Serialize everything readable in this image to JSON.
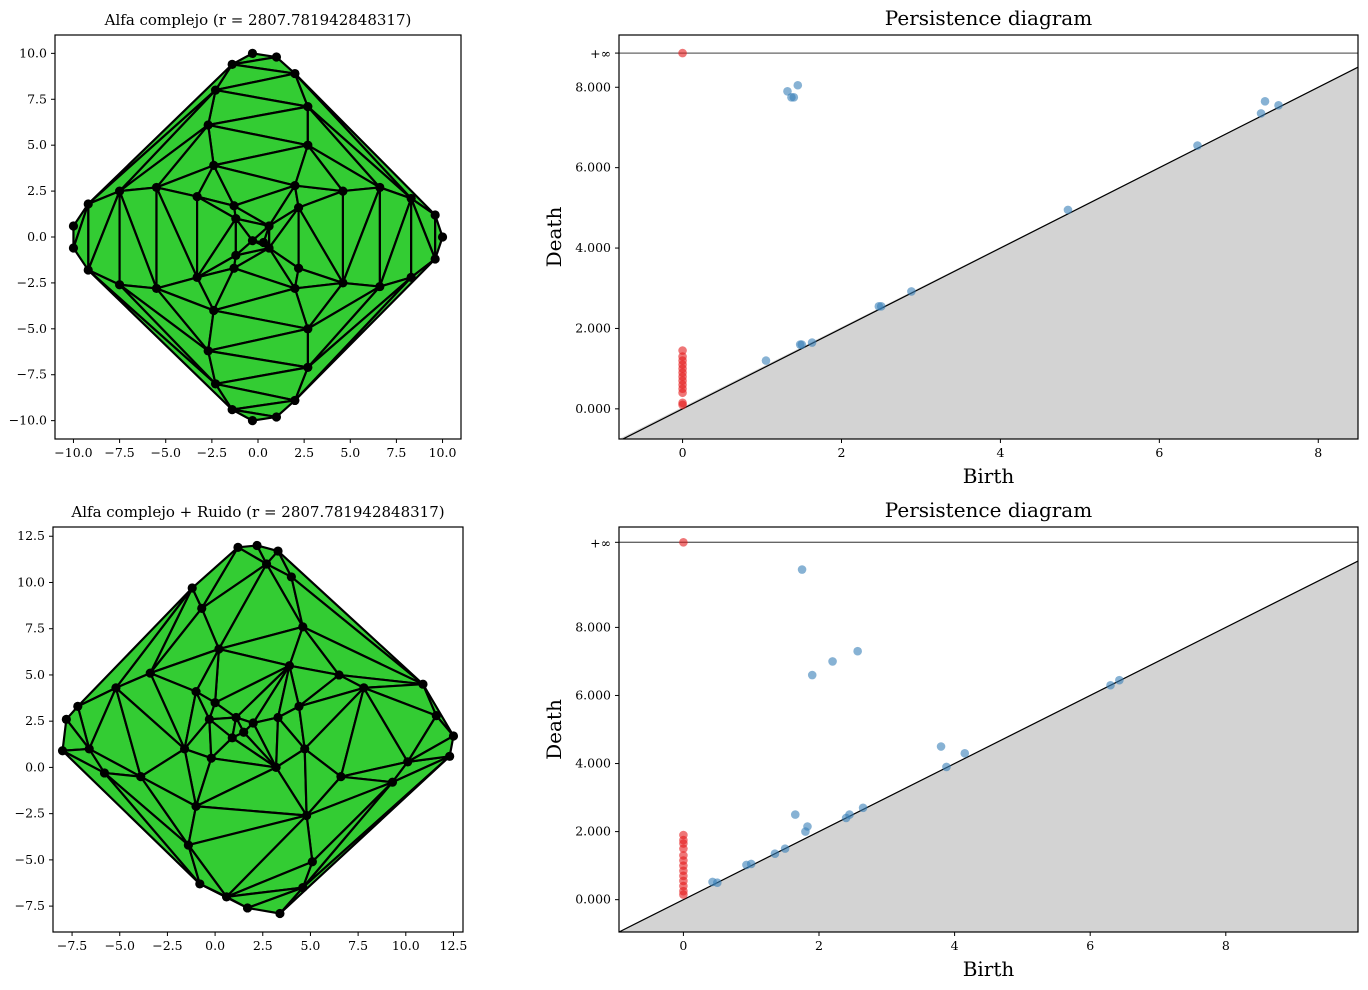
{
  "chart_data": [
    {
      "type": "triangulation",
      "title": "Alfa complejo (r = 2807.781942848317)",
      "xlim": [
        -11,
        11
      ],
      "ylim": [
        -11,
        11
      ],
      "xticks": [
        -10,
        -7.5,
        -5,
        -2.5,
        0,
        2.5,
        5,
        7.5,
        10
      ],
      "xtick_labels": [
        "−10.0",
        "−7.5",
        "−5.0",
        "−2.5",
        "0.0",
        "2.5",
        "5.0",
        "7.5",
        "10.0"
      ],
      "yticks": [
        10,
        7.5,
        5,
        2.5,
        0,
        -2.5,
        -5,
        -7.5,
        -10
      ],
      "ytick_labels": [
        "10.0",
        "7.5",
        "5.0",
        "2.5",
        "0.0",
        "−2.5",
        "−5.0",
        "−7.5",
        "−10.0"
      ],
      "fill_color": "#33cc33",
      "edge_color": "#000000",
      "points": [
        [
          -0.3,
          10
        ],
        [
          1,
          9.8
        ],
        [
          -1.4,
          9.4
        ],
        [
          2,
          8.9
        ],
        [
          -2.3,
          8
        ],
        [
          2.7,
          7.1
        ],
        [
          -2.7,
          6.1
        ],
        [
          2.7,
          5
        ],
        [
          -2.4,
          3.9
        ],
        [
          -10,
          0.6
        ],
        [
          -9.2,
          1.8
        ],
        [
          -7.5,
          2.5
        ],
        [
          -5.5,
          2.7
        ],
        [
          -3.3,
          2.2
        ],
        [
          -1.3,
          1.7
        ],
        [
          -1.2,
          1
        ],
        [
          0.6,
          0.6
        ],
        [
          2.2,
          1.6
        ],
        [
          2,
          2.8
        ],
        [
          4.6,
          2.5
        ],
        [
          6.6,
          2.7
        ],
        [
          8.3,
          2.1
        ],
        [
          9.6,
          1.2
        ],
        [
          10,
          0
        ],
        [
          -10,
          -0.6
        ],
        [
          -9.2,
          -1.8
        ],
        [
          -7.5,
          -2.6
        ],
        [
          -5.5,
          -2.8
        ],
        [
          -3.3,
          -2.2
        ],
        [
          -1.3,
          -1.7
        ],
        [
          -1.2,
          -1
        ],
        [
          0.6,
          -0.6
        ],
        [
          2.2,
          -1.7
        ],
        [
          2,
          -2.8
        ],
        [
          4.6,
          -2.5
        ],
        [
          6.6,
          -2.7
        ],
        [
          8.3,
          -2.2
        ],
        [
          9.6,
          -1.2
        ],
        [
          -0.3,
          -0.2
        ],
        [
          0.3,
          -0.3
        ],
        [
          -2.4,
          -4
        ],
        [
          2.7,
          -5
        ],
        [
          -2.7,
          -6.2
        ],
        [
          2.7,
          -7.1
        ],
        [
          -2.3,
          -8
        ],
        [
          2,
          -8.9
        ],
        [
          -1.4,
          -9.4
        ],
        [
          1,
          -9.8
        ],
        [
          -0.3,
          -10
        ]
      ]
    },
    {
      "type": "scatter",
      "title": "Persistence diagram",
      "xlabel": "Birth",
      "ylabel": "Death",
      "xlim": [
        -0.8,
        8.5
      ],
      "ylim": [
        -0.75,
        9.3
      ],
      "xticks": [
        0,
        2,
        4,
        6,
        8
      ],
      "xtick_labels": [
        "0",
        "2",
        "4",
        "6",
        "8"
      ],
      "yticks": [
        0,
        2,
        4,
        6,
        8
      ],
      "ytick_labels": [
        "0.000",
        "2.000",
        "4.000",
        "6.000",
        "8.000"
      ],
      "inf_value": 8.85,
      "inf_label": "+∞",
      "series": [
        {
          "color": "#e41a1c",
          "points": [
            [
              0,
              0.1
            ],
            [
              0,
              0.15
            ],
            [
              0,
              0.4
            ],
            [
              0,
              0.5
            ],
            [
              0,
              0.6
            ],
            [
              0,
              0.7
            ],
            [
              0,
              0.8
            ],
            [
              0,
              0.9
            ],
            [
              0,
              1.0
            ],
            [
              0,
              1.1
            ],
            [
              0,
              1.2
            ],
            [
              0,
              1.3
            ],
            [
              0,
              1.45
            ]
          ]
        },
        {
          "color": "#377eb8",
          "points": [
            [
              1.05,
              1.2
            ],
            [
              1.48,
              1.6
            ],
            [
              1.5,
              1.6
            ],
            [
              1.63,
              1.65
            ],
            [
              2.47,
              2.55
            ],
            [
              2.5,
              2.55
            ],
            [
              2.88,
              2.92
            ],
            [
              4.85,
              4.95
            ],
            [
              6.48,
              6.55
            ],
            [
              7.28,
              7.35
            ],
            [
              7.33,
              7.65
            ],
            [
              7.5,
              7.55
            ],
            [
              1.32,
              7.9
            ],
            [
              1.37,
              7.75
            ],
            [
              1.4,
              7.75
            ],
            [
              1.45,
              8.05
            ]
          ]
        }
      ],
      "infinite_points": [
        [
          0,
          8.85
        ]
      ]
    },
    {
      "type": "triangulation",
      "title": "Alfa complejo + Ruido (r = 2807.781942848317)",
      "xlim": [
        -8.5,
        13
      ],
      "ylim": [
        -8.9,
        13
      ],
      "xticks": [
        -7.5,
        -5,
        -2.5,
        0,
        2.5,
        5,
        7.5,
        10,
        12.5
      ],
      "xtick_labels": [
        "−7.5",
        "−5.0",
        "−2.5",
        "0.0",
        "2.5",
        "5.0",
        "7.5",
        "10.0",
        "12.5"
      ],
      "yticks": [
        12.5,
        10,
        7.5,
        5,
        2.5,
        0,
        -2.5,
        -5,
        -7.5
      ],
      "ytick_labels": [
        "12.5",
        "10.0",
        "7.5",
        "5.0",
        "2.5",
        "0.0",
        "−2.5",
        "−5.0",
        "−7.5"
      ],
      "fill_color": "#33cc33",
      "edge_color": "#000000",
      "points": [
        [
          1.2,
          11.9
        ],
        [
          2.2,
          12
        ],
        [
          3.3,
          11.7
        ],
        [
          2.7,
          11
        ],
        [
          4,
          10.3
        ],
        [
          -1.2,
          9.7
        ],
        [
          -0.7,
          8.6
        ],
        [
          4.6,
          7.6
        ],
        [
          0.2,
          6.4
        ],
        [
          3.9,
          5.5
        ],
        [
          -3.4,
          5.1
        ],
        [
          6.5,
          5
        ],
        [
          -1,
          4.1
        ],
        [
          7.8,
          4.3
        ],
        [
          10.9,
          4.5
        ],
        [
          -5.2,
          4.3
        ],
        [
          -7.2,
          3.3
        ],
        [
          -7.8,
          2.6
        ],
        [
          -8,
          0.9
        ],
        [
          -6.6,
          1
        ],
        [
          -1.6,
          1
        ],
        [
          -0.3,
          2.6
        ],
        [
          1.1,
          2.7
        ],
        [
          2,
          2.4
        ],
        [
          3.3,
          2.7
        ],
        [
          0,
          3.5
        ],
        [
          1.5,
          1.9
        ],
        [
          0.9,
          1.6
        ],
        [
          -0.2,
          0.5
        ],
        [
          4.4,
          3.3
        ],
        [
          4.7,
          1.0
        ],
        [
          3.2,
          0
        ],
        [
          6.6,
          -0.5
        ],
        [
          9.3,
          -0.8
        ],
        [
          10.1,
          0.3
        ],
        [
          11.6,
          2.8
        ],
        [
          12.5,
          1.7
        ],
        [
          12.3,
          0.6
        ],
        [
          -3.9,
          -0.5
        ],
        [
          -5.8,
          -0.3
        ],
        [
          -1,
          -2.1
        ],
        [
          -1.4,
          -4.2
        ],
        [
          4.8,
          -2.6
        ],
        [
          5.1,
          -5.1
        ],
        [
          -0.8,
          -6.3
        ],
        [
          0.6,
          -7
        ],
        [
          1.7,
          -7.6
        ],
        [
          3.4,
          -7.9
        ],
        [
          4.6,
          -6.5
        ]
      ]
    },
    {
      "type": "scatter",
      "title": "Persistence diagram",
      "xlabel": "Birth",
      "ylabel": "Death",
      "xlim": [
        -0.95,
        9.95
      ],
      "ylim": [
        -0.95,
        10.95
      ],
      "xticks": [
        0,
        2,
        4,
        6,
        8
      ],
      "xtick_labels": [
        "0",
        "2",
        "4",
        "6",
        "8"
      ],
      "yticks": [
        0,
        2,
        4,
        6,
        8
      ],
      "ytick_labels": [
        "0.000",
        "2.000",
        "4.000",
        "6.000",
        "8.000"
      ],
      "inf_value": 10.5,
      "inf_label": "+∞",
      "series": [
        {
          "color": "#e41a1c",
          "points": [
            [
              0,
              0.15
            ],
            [
              0,
              0.25
            ],
            [
              0,
              0.4
            ],
            [
              0,
              0.55
            ],
            [
              0,
              0.7
            ],
            [
              0,
              0.85
            ],
            [
              0,
              1.0
            ],
            [
              0,
              1.15
            ],
            [
              0,
              1.3
            ],
            [
              0,
              1.5
            ],
            [
              0,
              1.65
            ],
            [
              0,
              1.75
            ],
            [
              0,
              1.9
            ]
          ]
        },
        {
          "color": "#377eb8",
          "points": [
            [
              0.43,
              0.52
            ],
            [
              0.5,
              0.5
            ],
            [
              0.93,
              1.02
            ],
            [
              1.0,
              1.05
            ],
            [
              1.35,
              1.35
            ],
            [
              1.5,
              1.5
            ],
            [
              1.65,
              2.5
            ],
            [
              1.8,
              2.0
            ],
            [
              1.83,
              2.15
            ],
            [
              2.4,
              2.4
            ],
            [
              2.45,
              2.5
            ],
            [
              2.65,
              2.7
            ],
            [
              3.8,
              4.5
            ],
            [
              3.88,
              3.9
            ],
            [
              4.15,
              4.3
            ],
            [
              6.3,
              6.3
            ],
            [
              6.43,
              6.45
            ],
            [
              1.9,
              6.6
            ],
            [
              2.2,
              7.0
            ],
            [
              2.57,
              7.3
            ],
            [
              1.75,
              9.7
            ]
          ]
        }
      ],
      "infinite_points": [
        [
          0,
          10.5
        ]
      ]
    }
  ]
}
